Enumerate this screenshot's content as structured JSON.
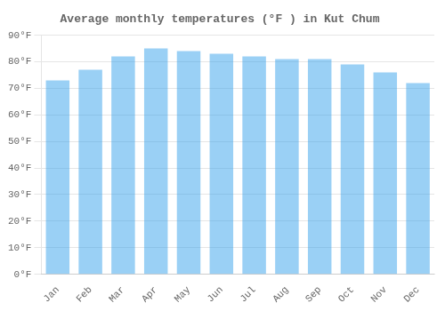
{
  "chart_data": {
    "type": "bar",
    "title": "Average monthly temperatures (°F ) in Kut Chum",
    "categories": [
      "Jan",
      "Feb",
      "Mar",
      "Apr",
      "May",
      "Jun",
      "Jul",
      "Aug",
      "Sep",
      "Oct",
      "Nov",
      "Dec"
    ],
    "values": [
      73,
      77,
      82,
      85,
      84,
      83,
      82,
      81,
      81,
      79,
      76,
      72
    ],
    "ylim": [
      0,
      90
    ],
    "yticks": [
      {
        "value": 0,
        "label": "0°F"
      },
      {
        "value": 10,
        "label": "10°F"
      },
      {
        "value": 20,
        "label": "20°F"
      },
      {
        "value": 30,
        "label": "30°F"
      },
      {
        "value": 40,
        "label": "40°F"
      },
      {
        "value": 50,
        "label": "50°F"
      },
      {
        "value": 60,
        "label": "60°F"
      },
      {
        "value": 70,
        "label": "70°F"
      },
      {
        "value": 80,
        "label": "80°F"
      },
      {
        "value": 90,
        "label": "90°F"
      }
    ],
    "grid": true
  }
}
